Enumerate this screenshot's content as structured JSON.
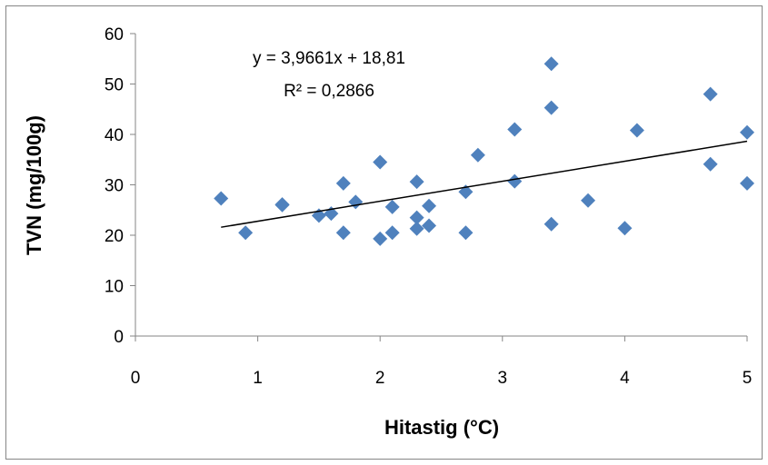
{
  "chart_data": {
    "type": "scatter",
    "xlabel": "Hitastig (°C)",
    "ylabel": "TVN (mg/100g)",
    "xlim": [
      0,
      5
    ],
    "ylim": [
      0,
      60
    ],
    "xticks": [
      0,
      1,
      2,
      3,
      4,
      5
    ],
    "yticks": [
      0,
      10,
      20,
      30,
      40,
      50,
      60
    ],
    "grid": false,
    "legend": "none",
    "marker": "diamond",
    "marker_color": "#4f81bd",
    "trendline_color": "#000000",
    "series": [
      {
        "points": [
          {
            "x": 0.7,
            "y": 27.3
          },
          {
            "x": 0.9,
            "y": 20.5
          },
          {
            "x": 1.2,
            "y": 26.1
          },
          {
            "x": 1.2,
            "y": 26.0
          },
          {
            "x": 1.5,
            "y": 23.9
          },
          {
            "x": 1.6,
            "y": 24.3
          },
          {
            "x": 1.7,
            "y": 30.3
          },
          {
            "x": 1.7,
            "y": 20.5
          },
          {
            "x": 1.8,
            "y": 26.6
          },
          {
            "x": 2.0,
            "y": 34.5
          },
          {
            "x": 2.0,
            "y": 19.3
          },
          {
            "x": 2.1,
            "y": 25.6
          },
          {
            "x": 2.1,
            "y": 20.5
          },
          {
            "x": 2.3,
            "y": 30.6
          },
          {
            "x": 2.3,
            "y": 23.5
          },
          {
            "x": 2.3,
            "y": 21.3
          },
          {
            "x": 2.4,
            "y": 25.8
          },
          {
            "x": 2.4,
            "y": 21.9
          },
          {
            "x": 2.7,
            "y": 28.6
          },
          {
            "x": 2.7,
            "y": 20.5
          },
          {
            "x": 2.8,
            "y": 35.9
          },
          {
            "x": 3.1,
            "y": 41.0
          },
          {
            "x": 3.1,
            "y": 30.7
          },
          {
            "x": 3.4,
            "y": 54.0
          },
          {
            "x": 3.4,
            "y": 45.3
          },
          {
            "x": 3.4,
            "y": 22.2
          },
          {
            "x": 3.7,
            "y": 26.9
          },
          {
            "x": 4.0,
            "y": 21.4
          },
          {
            "x": 4.1,
            "y": 40.8
          },
          {
            "x": 4.7,
            "y": 48.0
          },
          {
            "x": 4.7,
            "y": 34.1
          },
          {
            "x": 5.0,
            "y": 40.4
          },
          {
            "x": 5.0,
            "y": 30.3
          }
        ]
      }
    ],
    "trendline": {
      "slope": 3.9661,
      "intercept": 18.81,
      "x_range": [
        0.7,
        5.0
      ],
      "equation": "y = 3,9661x  + 18,81",
      "r_squared": "R² = 0,2866"
    }
  }
}
